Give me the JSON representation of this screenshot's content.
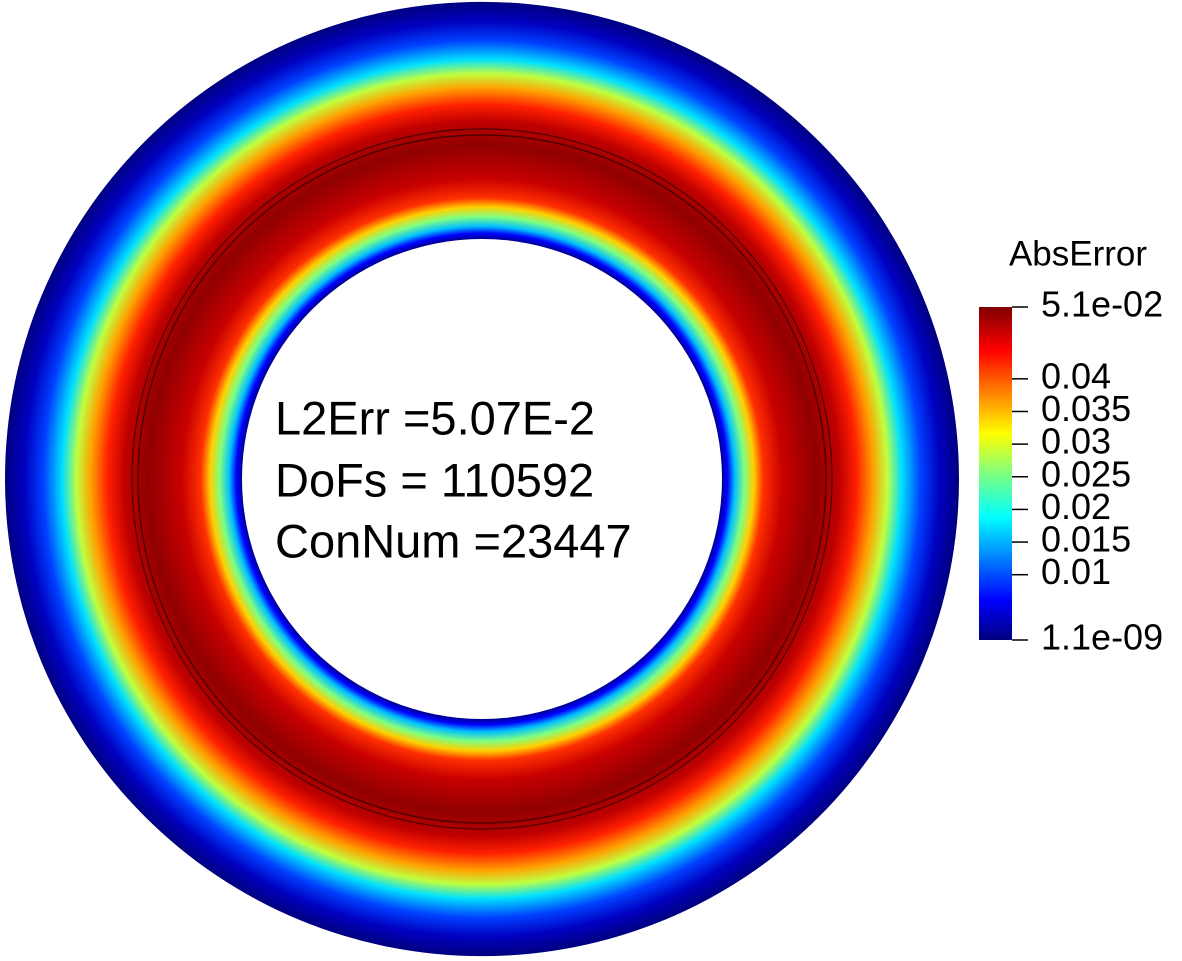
{
  "colorbar": {
    "title": "AbsError",
    "range": [
      1.1e-09,
      0.051
    ],
    "ticks": [
      {
        "value": 0.051,
        "label": "5.1e-02"
      },
      0.04,
      0.035,
      0.03,
      0.025,
      0.02,
      0.015,
      0.01,
      {
        "value": 1.1e-09,
        "label": "1.1e-09"
      }
    ]
  },
  "annotation": {
    "lines": [
      "L2Err =5.07E-2",
      "DoFs = 110592",
      "ConNum =23447"
    ]
  }
}
